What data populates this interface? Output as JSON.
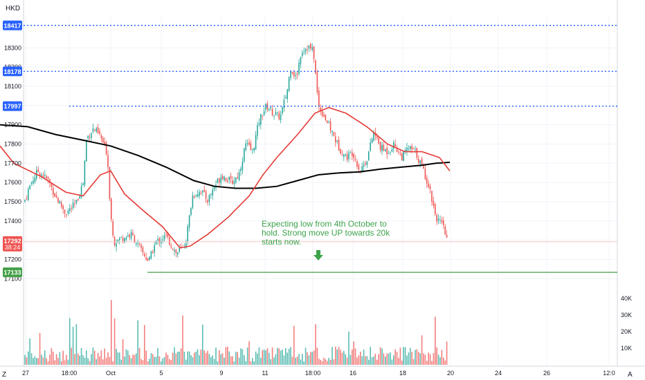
{
  "chart_data": {
    "type": "candlestick",
    "currency_label": "HKD",
    "y_ticks": [
      17100,
      17200,
      17300,
      17400,
      17500,
      17600,
      17700,
      17800,
      17900,
      18000,
      18100,
      18200,
      18300
    ],
    "y_tick_labels": [
      "17100",
      "17200",
      "17300",
      "17400",
      "17500",
      "17600",
      "17700",
      "17800",
      "17900",
      "18000",
      "18100",
      "18200",
      "18300"
    ],
    "ylim": [
      17040,
      18470
    ],
    "x_tick_labels": [
      "27",
      "18:00",
      "Oct",
      "5",
      "9",
      "11",
      "18:00",
      "16",
      "18",
      "20",
      "24",
      "26",
      "12:0"
    ],
    "volume_axis_labels": [
      "40K",
      "30K",
      "20K",
      "10K"
    ],
    "horizontal_levels": [
      {
        "value": 18417,
        "label": "18417",
        "color": "#2962ff"
      },
      {
        "value": 18178,
        "label": "18178",
        "color": "#2962ff"
      },
      {
        "value": 17997,
        "label": "17997",
        "color": "#2962ff"
      },
      {
        "value": 17133,
        "label": "17133",
        "color": "#43a047"
      }
    ],
    "last_price": {
      "value": 17292,
      "label": "17292",
      "countdown": "38:24",
      "color": "#ef5350"
    },
    "ma_fast_path": [
      [
        0,
        17790
      ],
      [
        20,
        17700
      ],
      [
        60,
        17630
      ],
      [
        95,
        17550
      ],
      [
        120,
        17530
      ],
      [
        145,
        17640
      ],
      [
        160,
        17660
      ],
      [
        180,
        17540
      ],
      [
        205,
        17460
      ],
      [
        235,
        17370
      ],
      [
        260,
        17260
      ],
      [
        275,
        17270
      ],
      [
        300,
        17330
      ],
      [
        330,
        17420
      ],
      [
        360,
        17530
      ],
      [
        380,
        17640
      ],
      [
        400,
        17730
      ],
      [
        430,
        17850
      ],
      [
        455,
        17960
      ],
      [
        475,
        17990
      ],
      [
        500,
        17960
      ],
      [
        530,
        17890
      ],
      [
        560,
        17800
      ],
      [
        585,
        17760
      ],
      [
        610,
        17760
      ],
      [
        635,
        17730
      ],
      [
        650,
        17660
      ]
    ],
    "ma_slow_path": [
      [
        0,
        17900
      ],
      [
        40,
        17890
      ],
      [
        80,
        17850
      ],
      [
        120,
        17820
      ],
      [
        160,
        17790
      ],
      [
        200,
        17740
      ],
      [
        240,
        17680
      ],
      [
        280,
        17610
      ],
      [
        310,
        17580
      ],
      [
        340,
        17570
      ],
      [
        370,
        17570
      ],
      [
        400,
        17580
      ],
      [
        430,
        17610
      ],
      [
        460,
        17640
      ],
      [
        490,
        17650
      ],
      [
        520,
        17655
      ],
      [
        550,
        17670
      ],
      [
        580,
        17680
      ],
      [
        610,
        17690
      ],
      [
        630,
        17700
      ],
      [
        650,
        17705
      ]
    ],
    "close_path": [
      [
        35,
        17500
      ],
      [
        45,
        17600
      ],
      [
        55,
        17660
      ],
      [
        70,
        17610
      ],
      [
        80,
        17530
      ],
      [
        95,
        17440
      ],
      [
        110,
        17490
      ],
      [
        120,
        17600
      ],
      [
        125,
        17830
      ],
      [
        135,
        17880
      ],
      [
        145,
        17840
      ],
      [
        155,
        17750
      ],
      [
        160,
        17430
      ],
      [
        165,
        17290
      ],
      [
        175,
        17310
      ],
      [
        190,
        17330
      ],
      [
        205,
        17240
      ],
      [
        215,
        17190
      ],
      [
        225,
        17290
      ],
      [
        240,
        17320
      ],
      [
        255,
        17230
      ],
      [
        268,
        17280
      ],
      [
        278,
        17530
      ],
      [
        290,
        17560
      ],
      [
        300,
        17510
      ],
      [
        310,
        17580
      ],
      [
        320,
        17640
      ],
      [
        335,
        17600
      ],
      [
        345,
        17640
      ],
      [
        355,
        17800
      ],
      [
        365,
        17760
      ],
      [
        375,
        17930
      ],
      [
        385,
        18000
      ],
      [
        395,
        17960
      ],
      [
        405,
        17940
      ],
      [
        415,
        18080
      ],
      [
        420,
        18200
      ],
      [
        428,
        18140
      ],
      [
        435,
        18280
      ],
      [
        445,
        18310
      ],
      [
        453,
        18280
      ],
      [
        460,
        18000
      ],
      [
        468,
        17950
      ],
      [
        480,
        17860
      ],
      [
        490,
        17780
      ],
      [
        500,
        17730
      ],
      [
        510,
        17760
      ],
      [
        520,
        17660
      ],
      [
        530,
        17720
      ],
      [
        540,
        17860
      ],
      [
        550,
        17780
      ],
      [
        560,
        17760
      ],
      [
        570,
        17800
      ],
      [
        580,
        17730
      ],
      [
        590,
        17780
      ],
      [
        600,
        17760
      ],
      [
        610,
        17680
      ],
      [
        620,
        17580
      ],
      [
        630,
        17420
      ],
      [
        640,
        17370
      ],
      [
        647,
        17292
      ]
    ],
    "annotation": {
      "text_lines": [
        "Expecting low from 4th October to",
        "hold. Strong move UP towards 20k",
        "starts now."
      ],
      "color": "#3da34b"
    },
    "colors": {
      "up": "#26a69a",
      "down": "#ef5350",
      "ma_fast": "#e53935",
      "ma_slow": "#000000",
      "grid": "#f0f3fa"
    }
  },
  "footer": {
    "timezone_button": "Z",
    "auto_button": "A"
  }
}
